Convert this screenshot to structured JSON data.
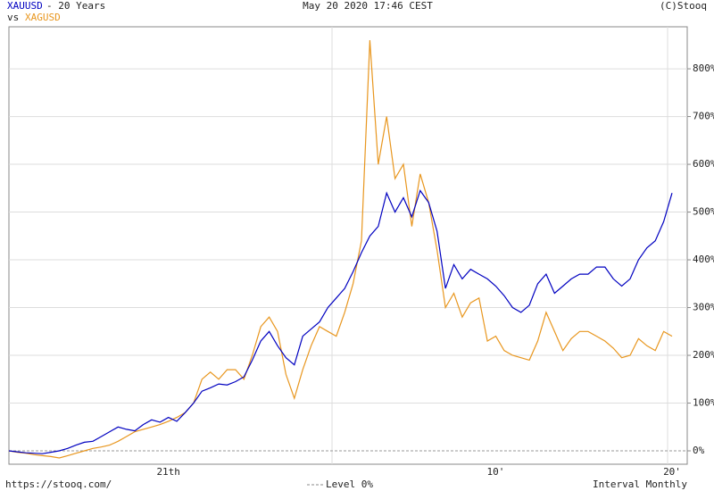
{
  "chart_data": {
    "type": "line",
    "title": "- 20 Years",
    "vs_label": "vs",
    "timestamp": "May 20 2020 17:46 CEST",
    "copyright": "(C)Stooq",
    "footer_url": "https://stooq.com/",
    "level_label": "Level 0%",
    "interval_label": "Interval Monthly",
    "categories": [
      null,
      null,
      null,
      null,
      null,
      null,
      null,
      null,
      null,
      null,
      null,
      null,
      null,
      null,
      null,
      null,
      null,
      null,
      null,
      "21th",
      null,
      null,
      null,
      null,
      null,
      null,
      null,
      null,
      null,
      null,
      null,
      null,
      null,
      null,
      null,
      null,
      null,
      null,
      null,
      null,
      null,
      null,
      null,
      null,
      null,
      null,
      null,
      null,
      null,
      null,
      null,
      null,
      null,
      null,
      null,
      null,
      null,
      null,
      "10'",
      null,
      null,
      null,
      null,
      null,
      null,
      null,
      null,
      null,
      null,
      null,
      null,
      null,
      null,
      null,
      null,
      null,
      null,
      null,
      null,
      "20'"
    ],
    "series": [
      {
        "name": "XAUUSD",
        "color": "#0000c0",
        "values": [
          0,
          -2,
          -4,
          -5,
          -6,
          -3,
          0,
          5,
          12,
          18,
          20,
          30,
          40,
          50,
          45,
          42,
          55,
          65,
          60,
          70,
          62,
          80,
          100,
          125,
          132,
          140,
          138,
          145,
          155,
          190,
          230,
          250,
          220,
          195,
          180,
          240,
          255,
          270,
          300,
          320,
          340,
          375,
          415,
          450,
          470,
          540,
          500,
          530,
          490,
          545,
          520,
          460,
          340,
          390,
          360,
          380,
          370,
          360,
          345,
          325,
          300,
          290,
          305,
          350,
          370,
          330,
          345,
          360,
          370,
          370,
          385,
          385,
          360,
          345,
          360,
          400,
          425,
          440,
          480,
          540
        ]
      },
      {
        "name": "XAGUSD",
        "color": "#e8961e",
        "values": [
          0,
          -3,
          -5,
          -8,
          -10,
          -12,
          -15,
          -10,
          -5,
          0,
          5,
          8,
          12,
          20,
          30,
          40,
          45,
          50,
          55,
          62,
          70,
          80,
          100,
          150,
          165,
          150,
          170,
          170,
          150,
          200,
          260,
          280,
          250,
          160,
          110,
          170,
          220,
          260,
          250,
          240,
          290,
          350,
          440,
          860,
          600,
          700,
          570,
          600,
          470,
          580,
          520,
          420,
          300,
          330,
          280,
          310,
          320,
          230,
          240,
          210,
          200,
          195,
          190,
          230,
          290,
          250,
          210,
          235,
          250,
          250,
          240,
          230,
          215,
          195,
          200,
          235,
          220,
          210,
          250,
          240
        ]
      }
    ],
    "ylim": [
      -28,
      888
    ],
    "yticks": [
      {
        "value": 0,
        "label": "0%"
      },
      {
        "value": 100,
        "label": "100%"
      },
      {
        "value": 200,
        "label": "200%"
      },
      {
        "value": 300,
        "label": "300%"
      },
      {
        "value": 400,
        "label": "400%"
      },
      {
        "value": 500,
        "label": "500%"
      },
      {
        "value": 600,
        "label": "600%"
      },
      {
        "value": 700,
        "label": "700%"
      },
      {
        "value": 800,
        "label": "800%"
      }
    ],
    "grid": true
  }
}
